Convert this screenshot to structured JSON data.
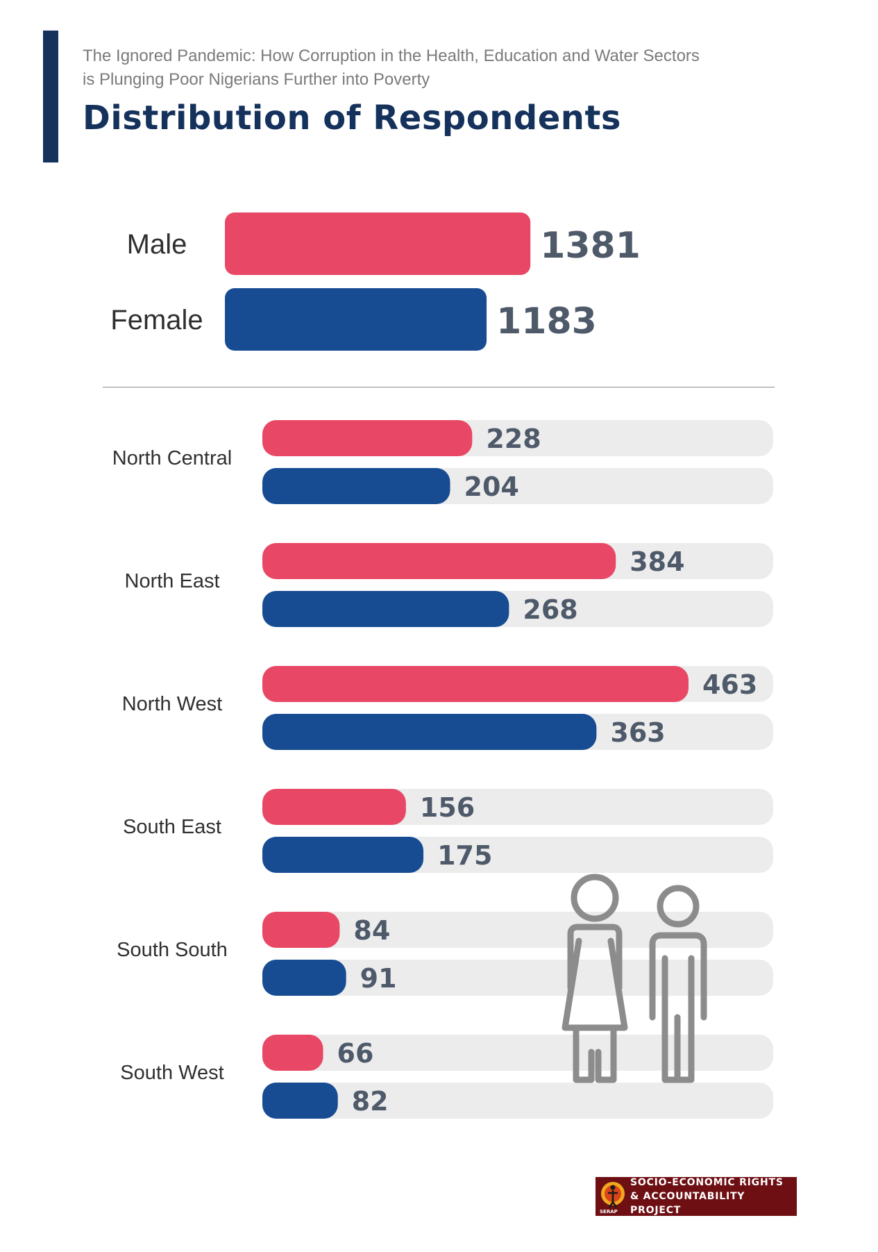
{
  "header": {
    "subtitle_line1": "The Ignored Pandemic: How Corruption in the Health, Education and Water Sectors",
    "subtitle_line2": "is Plunging Poor Nigerians Further into Poverty",
    "title": "Distribution of Respondents"
  },
  "colors": {
    "male": "#e84865",
    "female": "#174c92",
    "track": "#ececec",
    "accent": "#15325c",
    "value_text": "#4e5a6a"
  },
  "chart_data": [
    {
      "type": "bar",
      "orientation": "horizontal",
      "categories": [
        "Male",
        "Female"
      ],
      "values": [
        1381,
        1183
      ],
      "xlim": [
        0,
        1600
      ]
    },
    {
      "type": "bar",
      "orientation": "horizontal",
      "categories": [
        "North Central",
        "North East",
        "North West",
        "South East",
        "South South",
        "South West"
      ],
      "series": [
        {
          "name": "",
          "color_key": "male",
          "values": [
            228,
            384,
            463,
            156,
            84,
            66
          ]
        },
        {
          "name": "",
          "color_key": "female",
          "values": [
            204,
            268,
            363,
            175,
            91,
            82
          ]
        }
      ],
      "xlim": [
        0,
        555
      ]
    }
  ],
  "icons": {
    "people": "woman-and-man-outline-icon",
    "logo": "serap-logo-icon"
  },
  "footer": {
    "logo_line1": "SOCIO-ECONOMIC RIGHTS",
    "logo_line2": "& ACCOUNTABILITY PROJECT",
    "logo_abbr": "SERAP"
  }
}
